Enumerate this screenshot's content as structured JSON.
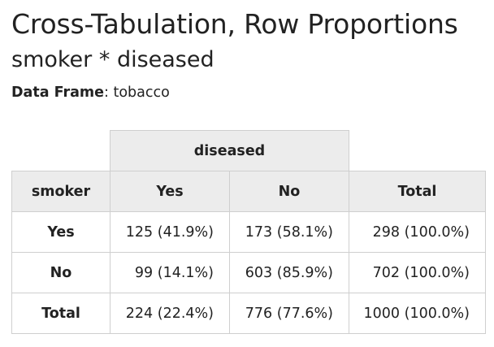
{
  "title": "Cross-Tabulation, Row Proportions",
  "subtitle": "smoker * diseased",
  "data_frame": {
    "label": "Data Frame",
    "separator": ":",
    "value": "tobacco"
  },
  "table": {
    "column_group": "diseased",
    "row_variable": "smoker",
    "columns": [
      "Yes",
      "No",
      "Total"
    ],
    "rows": [
      {
        "label": "Yes",
        "cells": [
          "125 (41.9%)",
          "173 (58.1%)",
          "298 (100.0%)"
        ]
      },
      {
        "label": "No",
        "cells": [
          "99 (14.1%)",
          "603 (85.9%)",
          "702 (100.0%)"
        ]
      },
      {
        "label": "Total",
        "cells": [
          "224 (22.4%)",
          "776 (77.6%)",
          "1000 (100.0%)"
        ]
      }
    ]
  },
  "colors": {
    "header_background": "#ececec",
    "border": "#cfcfcf",
    "text": "#222222"
  }
}
